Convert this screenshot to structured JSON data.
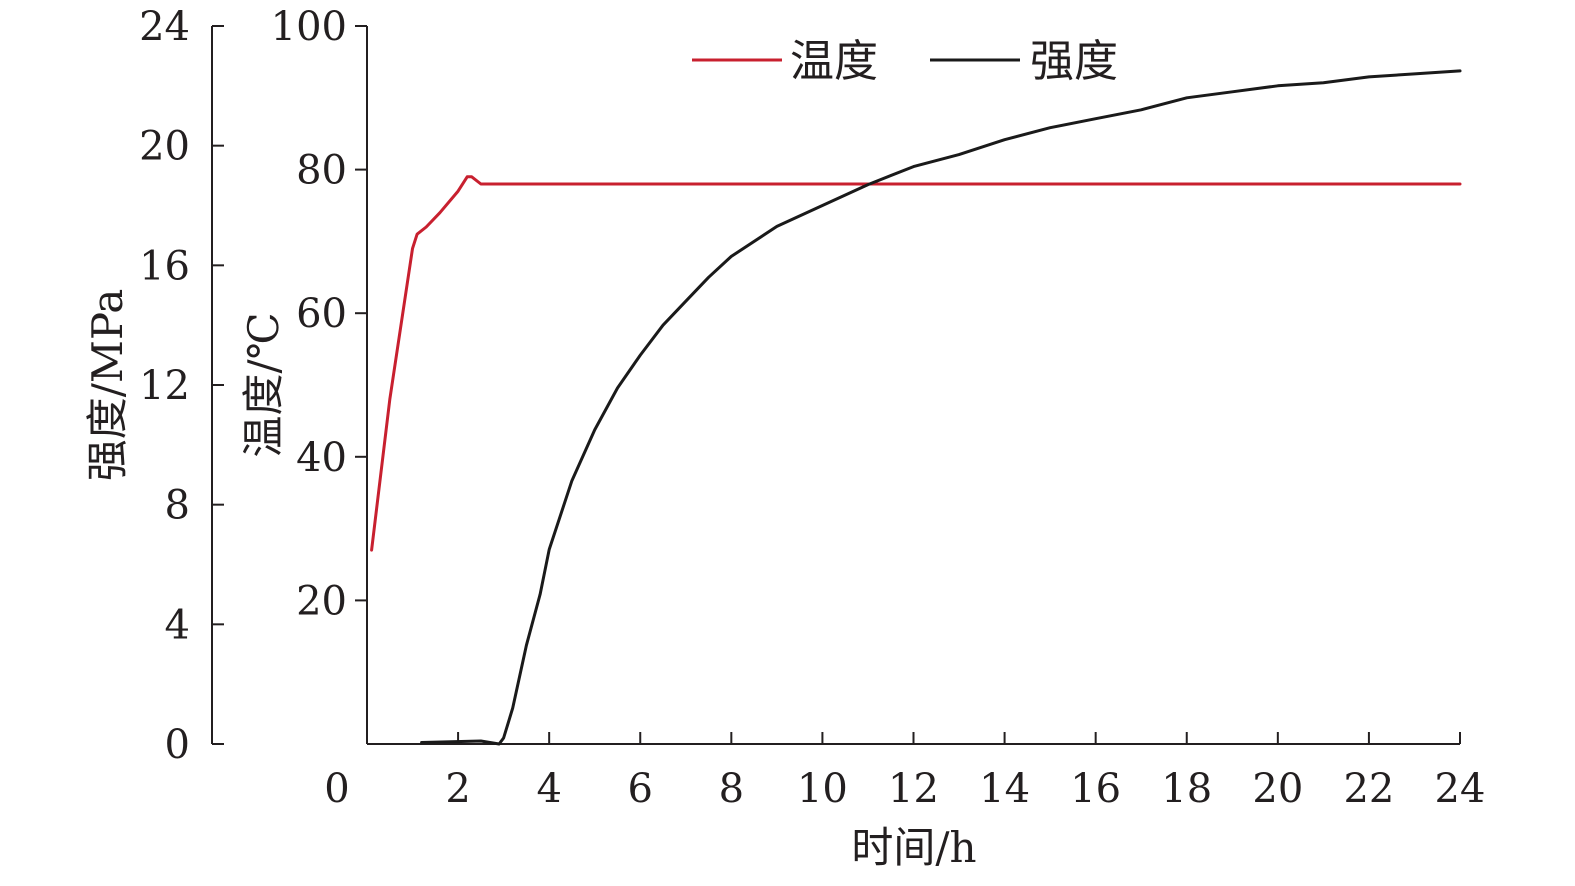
{
  "chart_data": {
    "type": "line",
    "xlabel": "时间/h",
    "ylabel_left": "强度/MPa",
    "ylabel_right": "温度/℃",
    "xlim": [
      0,
      24
    ],
    "ylim_left": [
      0,
      24
    ],
    "ylim_right": [
      0,
      100
    ],
    "x_ticks": [
      0,
      2,
      4,
      6,
      8,
      10,
      12,
      14,
      16,
      18,
      20,
      22,
      24
    ],
    "y_left_ticks": [
      0,
      4,
      8,
      12,
      16,
      20,
      24
    ],
    "y_right_ticks": [
      20,
      40,
      60,
      80,
      100
    ],
    "grid": false,
    "legend_position": "top",
    "series": [
      {
        "name": "温度",
        "axis": "temperature",
        "color": "#c8202f",
        "x": [
          0.1,
          0.5,
          1.0,
          1.1,
          1.3,
          1.6,
          2.0,
          2.2,
          2.3,
          2.5,
          24
        ],
        "y": [
          27,
          48,
          69,
          71,
          72,
          74,
          77,
          79,
          79,
          78,
          78
        ]
      },
      {
        "name": "强度",
        "axis": "strength",
        "color": "#1a1a1a",
        "x": [
          1.2,
          2.5,
          2.9,
          3.0,
          3.2,
          3.5,
          3.8,
          4.0,
          4.5,
          5.0,
          5.5,
          6.0,
          6.5,
          7.0,
          7.5,
          8.0,
          9.0,
          10.0,
          11.0,
          12.0,
          13.0,
          14.0,
          15.0,
          16.0,
          17.0,
          18.0,
          19.0,
          20.0,
          21.0,
          22.0,
          23.0,
          24.0
        ],
        "y": [
          0.05,
          0.1,
          0.0,
          0.2,
          1.2,
          3.3,
          5.0,
          6.5,
          8.8,
          10.5,
          11.9,
          13.0,
          14.0,
          14.8,
          15.6,
          16.3,
          17.3,
          18.0,
          18.7,
          19.3,
          19.7,
          20.2,
          20.6,
          20.9,
          21.2,
          21.6,
          21.8,
          22.0,
          22.1,
          22.3,
          22.4,
          22.5
        ]
      }
    ]
  }
}
